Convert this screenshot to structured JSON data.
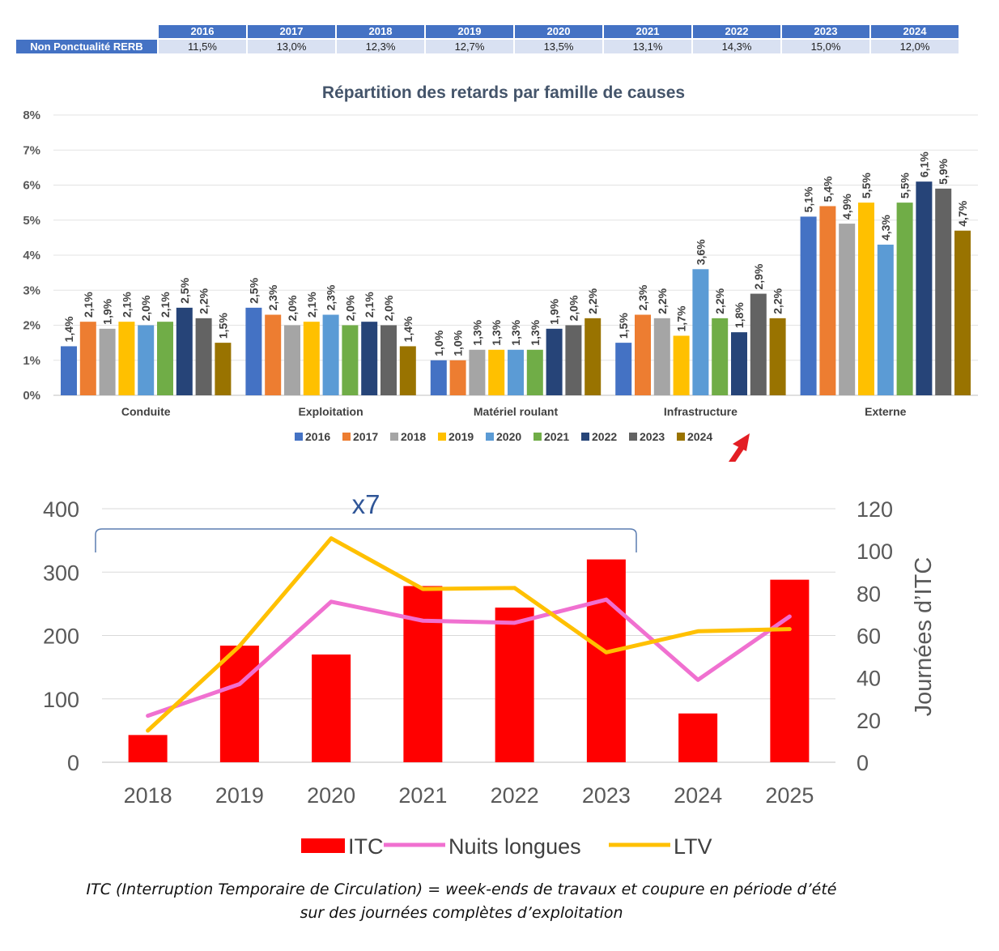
{
  "table": {
    "row_label": "Non Ponctualité RERB",
    "years": [
      "2016",
      "2017",
      "2018",
      "2019",
      "2020",
      "2021",
      "2022",
      "2023",
      "2024"
    ],
    "values": [
      "11,5%",
      "13,0%",
      "12,3%",
      "12,7%",
      "13,5%",
      "13,1%",
      "14,3%",
      "15,0%",
      "12,0%"
    ]
  },
  "chart_data": [
    {
      "type": "bar",
      "title": "Répartition des retards par famille de causes",
      "categories": [
        "Conduite",
        "Exploitation",
        "Matériel roulant",
        "Infrastructure",
        "Externe"
      ],
      "ylim": [
        0,
        8
      ],
      "yticks": [
        "0%",
        "1%",
        "2%",
        "3%",
        "4%",
        "5%",
        "6%",
        "7%",
        "8%"
      ],
      "grid": true,
      "legend_position": "bottom",
      "series": [
        {
          "name": "2016",
          "color": "#4472C4",
          "values": [
            1.4,
            2.5,
            1.0,
            1.5,
            5.1
          ],
          "labels": [
            "1,4%",
            "2,5%",
            "1,0%",
            "1,5%",
            "5,1%"
          ]
        },
        {
          "name": "2017",
          "color": "#ED7D31",
          "values": [
            2.1,
            2.3,
            1.0,
            2.3,
            5.4
          ],
          "labels": [
            "2,1%",
            "2,3%",
            "1,0%",
            "2,3%",
            "5,4%"
          ]
        },
        {
          "name": "2018",
          "color": "#A5A5A5",
          "values": [
            1.9,
            2.0,
            1.3,
            2.2,
            4.9
          ],
          "labels": [
            "1,9%",
            "2,0%",
            "1,3%",
            "2,2%",
            "4,9%"
          ]
        },
        {
          "name": "2019",
          "color": "#FFC000",
          "values": [
            2.1,
            2.1,
            1.3,
            1.7,
            5.5
          ],
          "labels": [
            "2,1%",
            "2,1%",
            "1,3%",
            "1,7%",
            "5,5%"
          ]
        },
        {
          "name": "2020",
          "color": "#5B9BD5",
          "values": [
            2.0,
            2.3,
            1.3,
            3.6,
            4.3
          ],
          "labels": [
            "2,0%",
            "2,3%",
            "1,3%",
            "3,6%",
            "4,3%"
          ]
        },
        {
          "name": "2021",
          "color": "#70AD47",
          "values": [
            2.1,
            2.0,
            1.3,
            2.2,
            5.5
          ],
          "labels": [
            "2,1%",
            "2,0%",
            "1,3%",
            "2,2%",
            "5,5%"
          ]
        },
        {
          "name": "2022",
          "color": "#264478",
          "values": [
            2.5,
            2.1,
            1.9,
            1.8,
            6.1
          ],
          "labels": [
            "2,5%",
            "2,1%",
            "1,9%",
            "1,8%",
            "6,1%"
          ]
        },
        {
          "name": "2023",
          "color": "#636363",
          "values": [
            2.2,
            2.0,
            2.0,
            2.9,
            5.9
          ],
          "labels": [
            "2,2%",
            "2,0%",
            "2,0%",
            "2,9%",
            "5,9%"
          ]
        },
        {
          "name": "2024",
          "color": "#997300",
          "values": [
            1.5,
            1.4,
            2.2,
            2.2,
            4.7
          ],
          "labels": [
            "1,5%",
            "1,4%",
            "2,2%",
            "2,2%",
            "4,7%"
          ]
        }
      ]
    },
    {
      "type": "bar",
      "categories": [
        "2018",
        "2019",
        "2020",
        "2021",
        "2022",
        "2023",
        "2024",
        "2025"
      ],
      "ylim": [
        0,
        400
      ],
      "yticks": [
        0,
        100,
        200,
        300,
        400
      ],
      "y2lim": [
        0,
        120
      ],
      "y2ticks": [
        0,
        20,
        40,
        60,
        80,
        100,
        120
      ],
      "y2label": "Journées d’ITC",
      "grid": true,
      "legend_position": "bottom",
      "annotation": "x7",
      "series": [
        {
          "name": "ITC",
          "type": "bar",
          "axis": "left",
          "color": "#FF0000",
          "values": [
            43,
            184,
            170,
            278,
            244,
            320,
            77,
            288
          ]
        },
        {
          "name": "Nuits longues",
          "type": "line",
          "axis": "right",
          "color": "#F070D0",
          "values": [
            22,
            37,
            76,
            67,
            66,
            77,
            39,
            69
          ]
        },
        {
          "name": "LTV",
          "type": "line",
          "axis": "right",
          "color": "#FFC000",
          "values": [
            15,
            55,
            106,
            82,
            82.5,
            52,
            62,
            63
          ]
        }
      ]
    }
  ],
  "footnote": {
    "line1": "ITC (Interruption Temporaire de Circulation) = week-ends de travaux et coupure en période d’été",
    "line2": "sur des journées complètes d’exploitation"
  },
  "colors": {
    "table_header": "#4472C4",
    "table_cell": "#D9E1F2",
    "arrow": "#E31E24",
    "bracket": "#5B7DB1",
    "annotation": "#2F5597"
  }
}
